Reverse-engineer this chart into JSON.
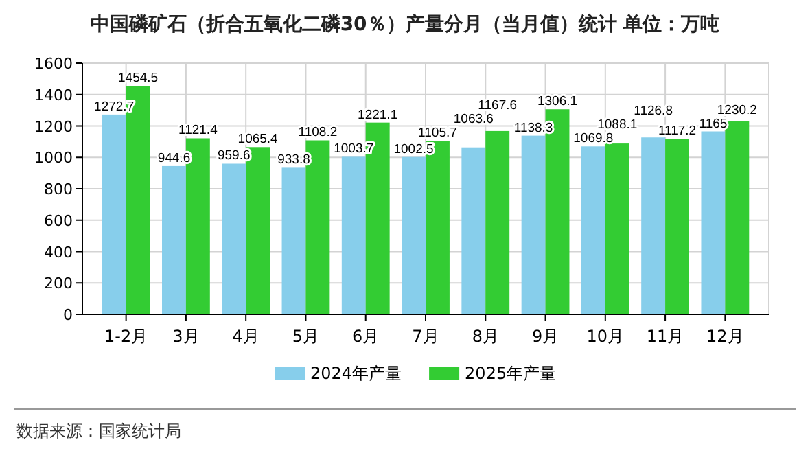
{
  "chart_data": {
    "type": "bar",
    "title": "中国磷矿石（折合五氧化二磷30％）产量分月（当月值）统计 单位：万吨",
    "categories": [
      "1-2月",
      "3月",
      "4月",
      "5月",
      "6月",
      "7月",
      "8月",
      "9月",
      "10月",
      "11月",
      "12月"
    ],
    "series": [
      {
        "name": "2024年产量",
        "color": "#87ceeb",
        "values": [
          1272.7,
          944.6,
          959.6,
          933.8,
          1003.7,
          1002.5,
          1063.6,
          1138.3,
          1069.8,
          1126.8,
          1165
        ]
      },
      {
        "name": "2025年产量",
        "color": "#33cc33",
        "values": [
          1454.5,
          1121.4,
          1065.4,
          1108.2,
          1221.1,
          1105.7,
          1167.6,
          1306.1,
          1088.1,
          1117.2,
          1230.2
        ]
      }
    ],
    "ylim": [
      0,
      1600
    ],
    "yticks": [
      0,
      200,
      400,
      600,
      800,
      1000,
      1200,
      1400,
      1600
    ],
    "grid": true,
    "legend": "bottom",
    "data_labels": true,
    "annotations": [
      "数据来源：国家统计局"
    ]
  }
}
